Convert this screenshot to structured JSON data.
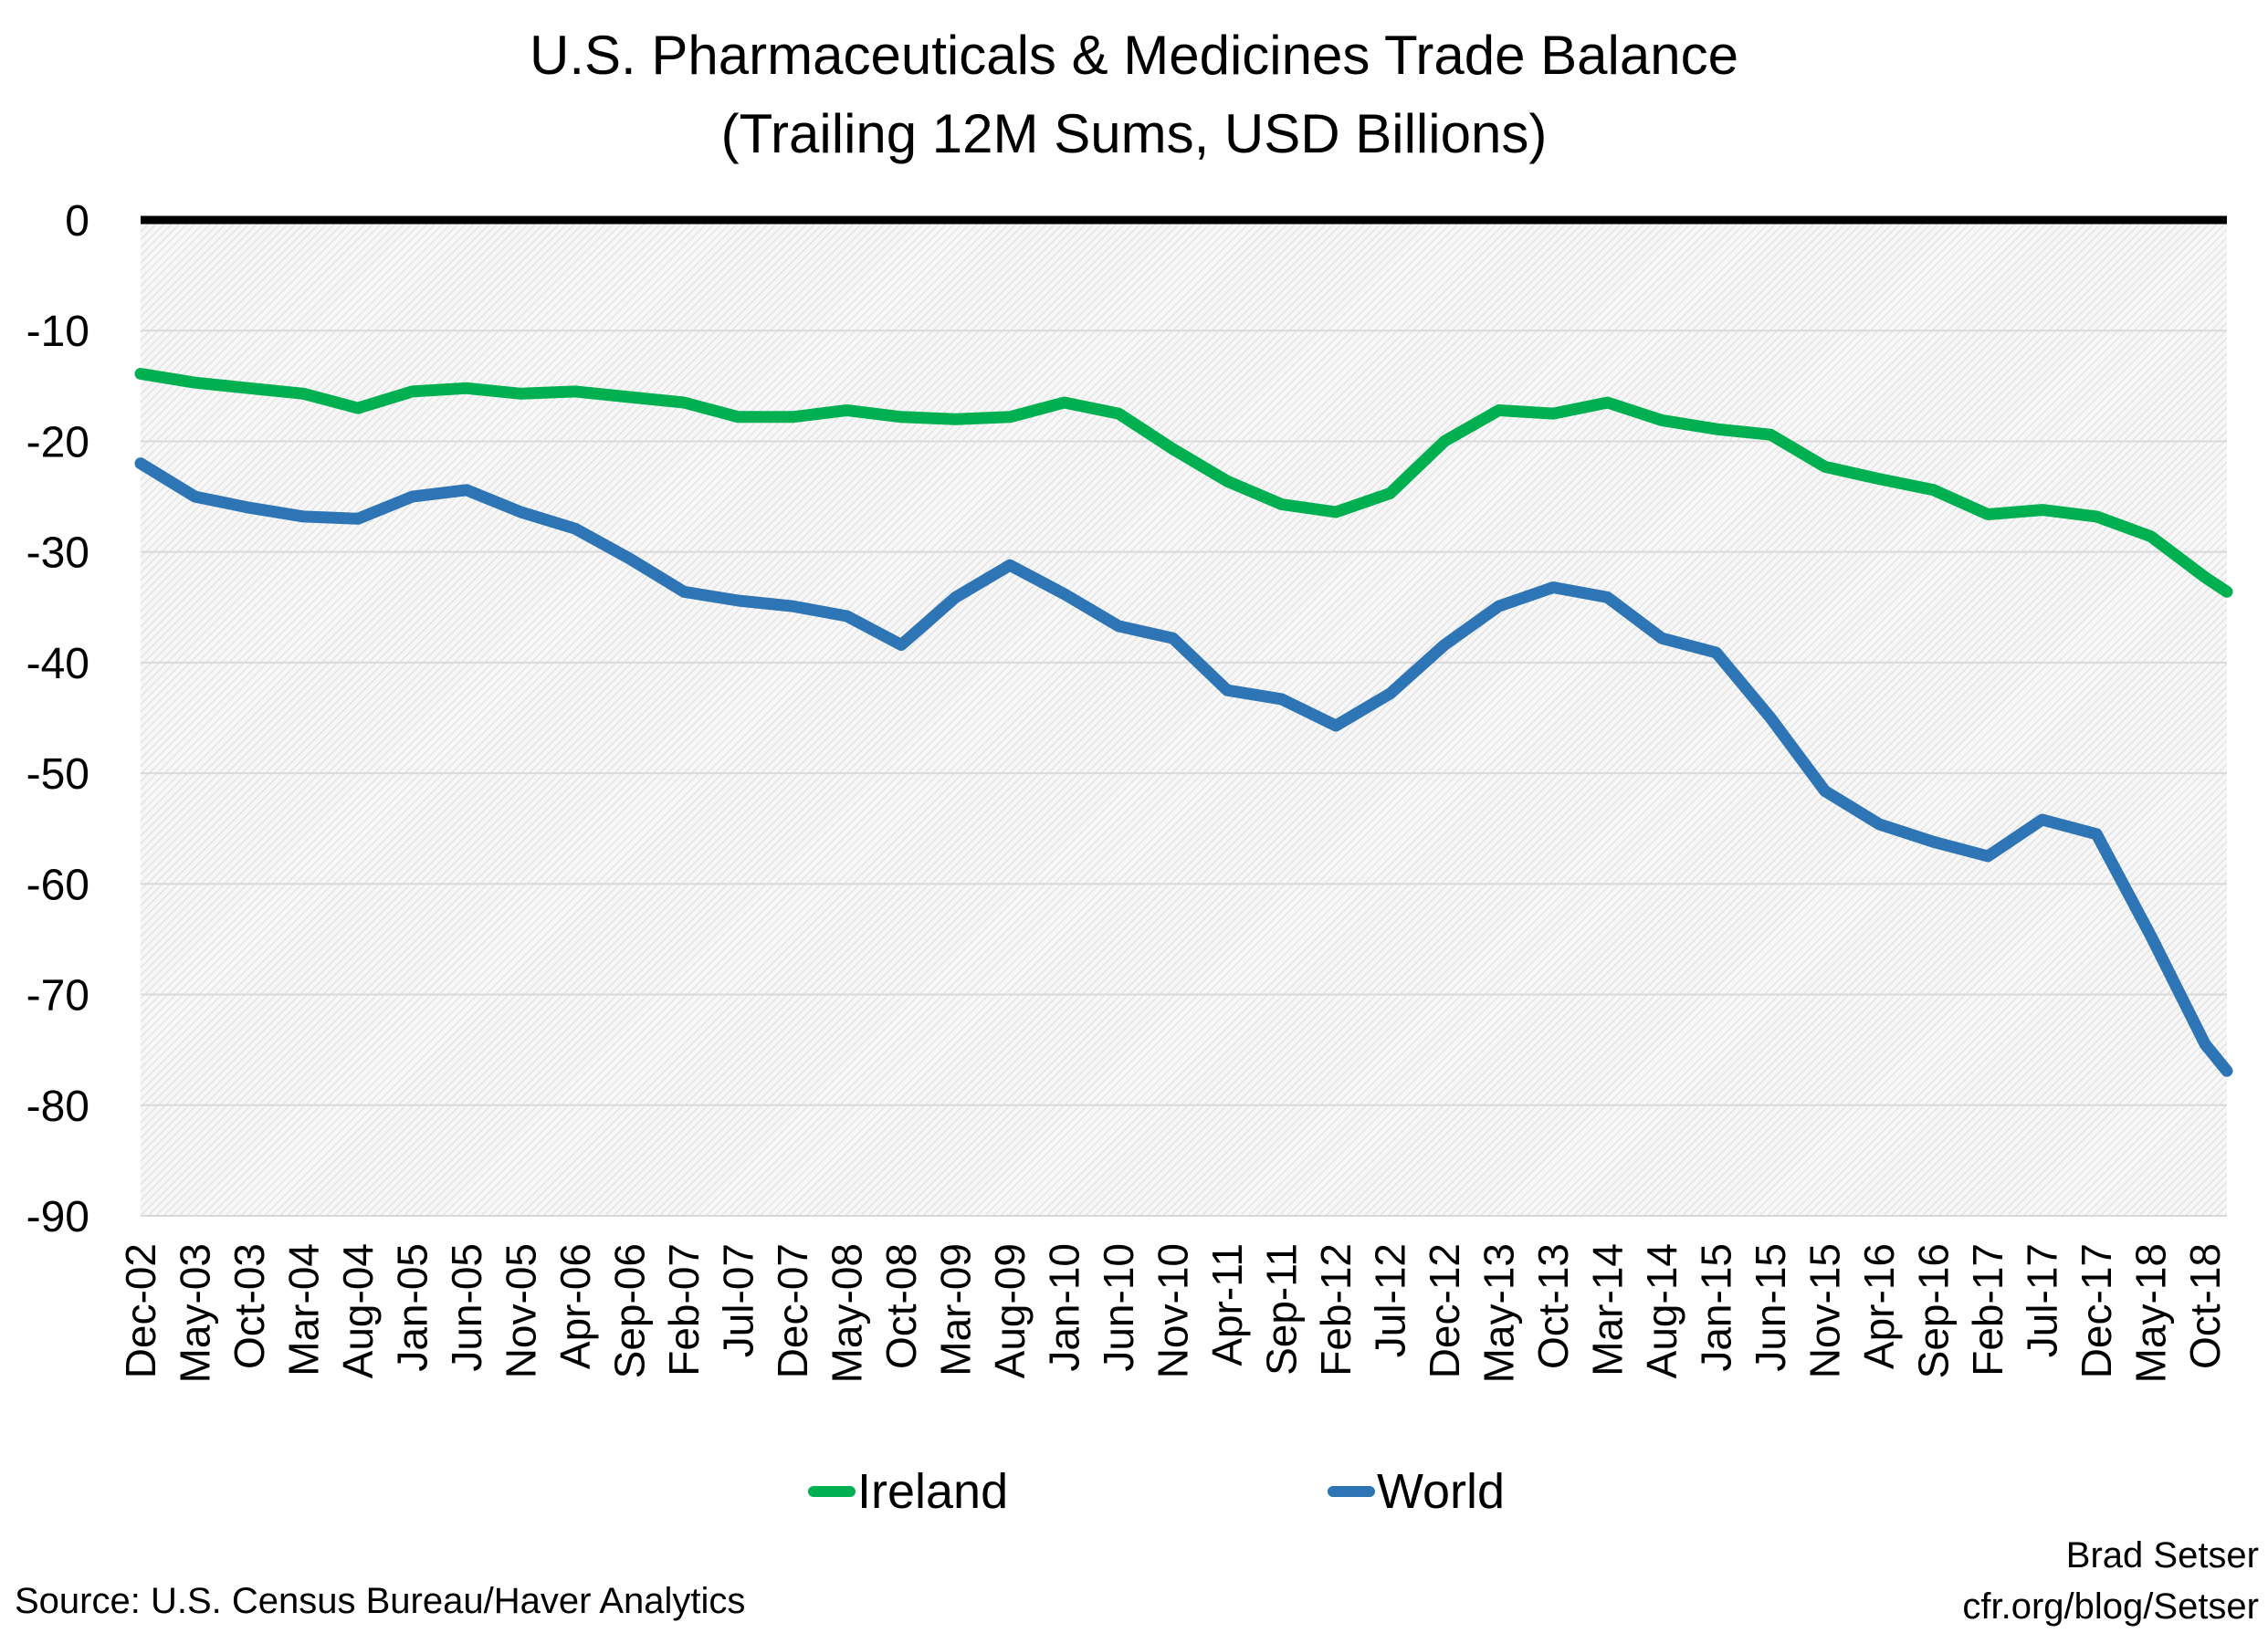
{
  "chart_data": {
    "type": "line",
    "title": "U.S. Pharmaceuticals & Medicines Trade Balance",
    "subtitle": "(Trailing 12M Sums, USD Billions)",
    "xlabel": "",
    "ylabel": "",
    "ylim": [
      -90,
      0
    ],
    "yticks": [
      0,
      -10,
      -20,
      -30,
      -40,
      -50,
      -60,
      -70,
      -80,
      -90
    ],
    "grid": true,
    "legend": "bottom",
    "x_tick_labels": [
      "Dec-02",
      "May-03",
      "Oct-03",
      "Mar-04",
      "Aug-04",
      "Jan-05",
      "Jun-05",
      "Nov-05",
      "Apr-06",
      "Sep-06",
      "Feb-07",
      "Jul-07",
      "Dec-07",
      "May-08",
      "Oct-08",
      "Mar-09",
      "Aug-09",
      "Jan-10",
      "Jun-10",
      "Nov-10",
      "Apr-11",
      "Sep-11",
      "Feb-12",
      "Jul-12",
      "Dec-12",
      "May-13",
      "Oct-13",
      "Mar-14",
      "Aug-14",
      "Jan-15",
      "Jun-15",
      "Nov-15",
      "Apr-16",
      "Sep-16",
      "Feb-17",
      "Jul-17",
      "Dec-17",
      "May-18",
      "Oct-18"
    ],
    "x": [
      "Dec-02",
      "May-03",
      "Oct-03",
      "Mar-04",
      "Aug-04",
      "Jan-05",
      "Jun-05",
      "Nov-05",
      "Apr-06",
      "Sep-06",
      "Feb-07",
      "Jul-07",
      "Dec-07",
      "May-08",
      "Oct-08",
      "Mar-09",
      "Aug-09",
      "Jan-10",
      "Jun-10",
      "Nov-10",
      "Apr-11",
      "Sep-11",
      "Feb-12",
      "Jul-12",
      "Dec-12",
      "May-13",
      "Oct-13",
      "Mar-14",
      "Aug-14",
      "Jan-15",
      "Jun-15",
      "Nov-15",
      "Apr-16",
      "Sep-16",
      "Feb-17",
      "Jul-17",
      "Dec-17",
      "May-18",
      "Oct-18",
      "Dec-18"
    ],
    "series": [
      {
        "name": "Ireland",
        "color": "#00b050",
        "values": [
          -13.9,
          -14.7,
          -15.2,
          -15.7,
          -17.0,
          -15.5,
          -15.2,
          -15.7,
          -15.5,
          -16.0,
          -16.5,
          -17.8,
          -17.8,
          -17.2,
          -17.8,
          -18.0,
          -17.8,
          -16.5,
          -17.5,
          -20.7,
          -23.6,
          -25.7,
          -26.4,
          -24.7,
          -20.0,
          -17.2,
          -17.5,
          -16.5,
          -18.1,
          -18.9,
          -19.4,
          -22.3,
          -23.4,
          -24.4,
          -26.6,
          -26.2,
          -26.8,
          -28.6,
          -32.3,
          -33.6
        ]
      },
      {
        "name": "World",
        "color": "#2e75b6",
        "values": [
          -22.0,
          -25.0,
          -26.0,
          -26.8,
          -27.0,
          -25.0,
          -24.4,
          -26.4,
          -27.9,
          -30.6,
          -33.6,
          -34.4,
          -34.9,
          -35.8,
          -38.4,
          -34.1,
          -31.2,
          -33.8,
          -36.7,
          -37.8,
          -42.5,
          -43.3,
          -45.7,
          -42.8,
          -38.4,
          -34.9,
          -33.2,
          -34.1,
          -37.8,
          -39.1,
          -45.0,
          -51.6,
          -54.6,
          -56.2,
          -57.5,
          -54.2,
          -55.5,
          -64.7,
          -74.5,
          -76.9
        ]
      }
    ]
  },
  "credit": {
    "author": "Brad Setser",
    "url": "cfr.org/blog/Setser"
  },
  "source": "Source: U.S. Census Bureau/Haver Analytics"
}
